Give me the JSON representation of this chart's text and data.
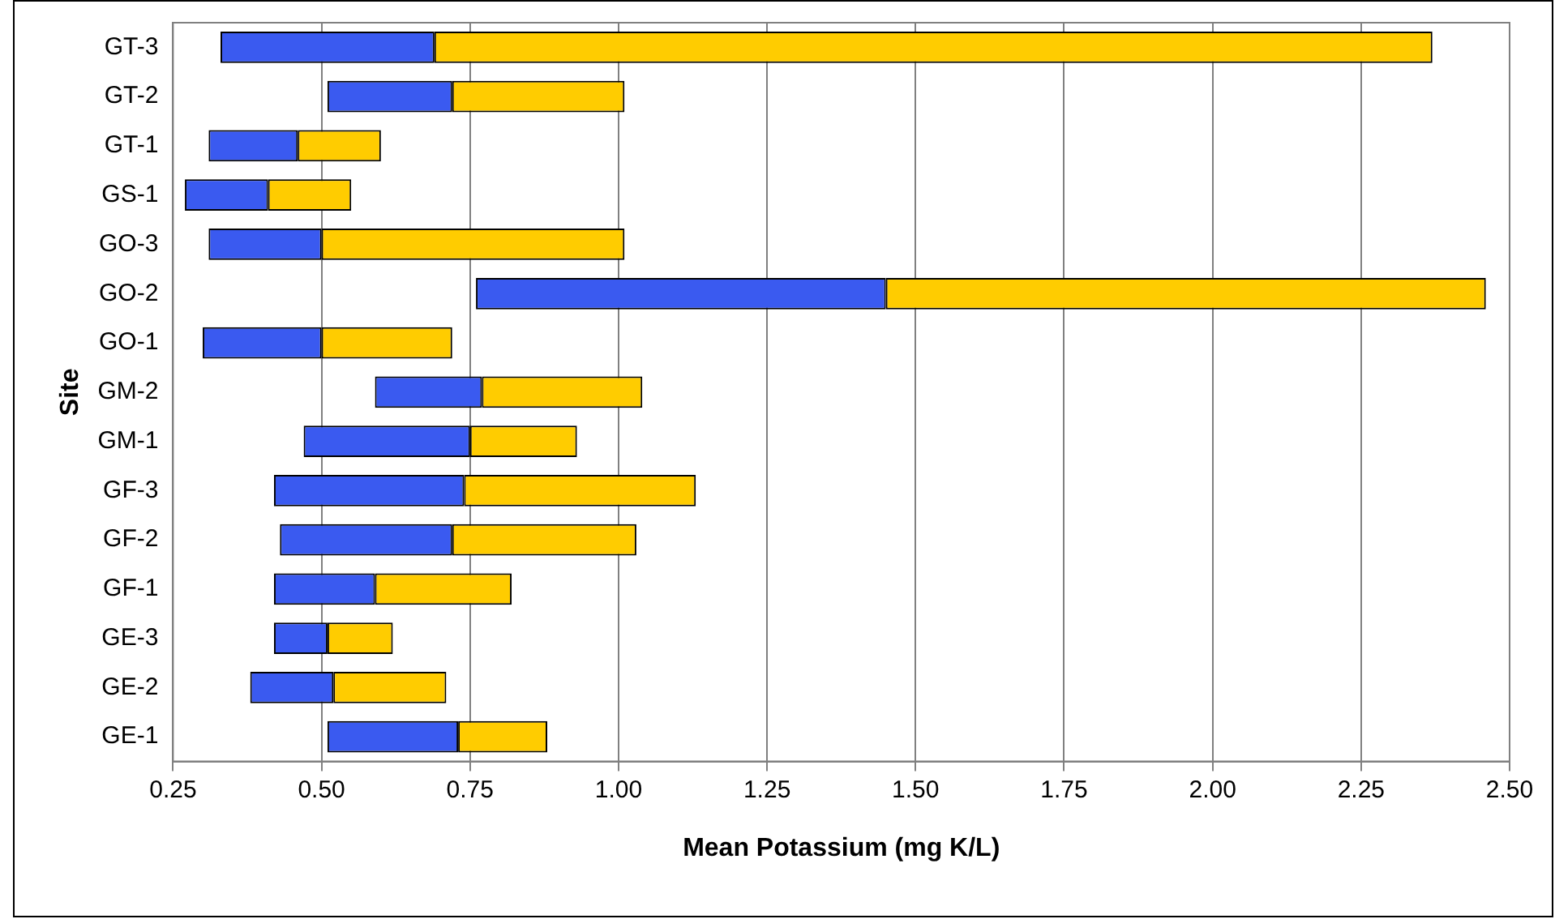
{
  "chart_data": {
    "type": "bar",
    "orientation": "horizontal",
    "xlabel": "Mean Potassium (mg K/L)",
    "ylabel": "Site",
    "categories": [
      "GT-3",
      "GT-2",
      "GT-1",
      "GS-1",
      "GO-3",
      "GO-2",
      "GO-1",
      "GM-2",
      "GM-1",
      "GF-3",
      "GF-2",
      "GF-1",
      "GE-3",
      "GE-2",
      "GE-1"
    ],
    "series": [
      {
        "color": "#3a5af0",
        "base": [
          0.33,
          0.51,
          0.31,
          0.27,
          0.31,
          0.76,
          0.3,
          0.59,
          0.47,
          0.42,
          0.43,
          0.42,
          0.42,
          0.38,
          0.51
        ],
        "values": [
          0.36,
          0.21,
          0.15,
          0.14,
          0.19,
          0.69,
          0.2,
          0.18,
          0.28,
          0.32,
          0.29,
          0.17,
          0.09,
          0.14,
          0.22
        ]
      },
      {
        "color": "#ffcc00",
        "base": [
          0.69,
          0.72,
          0.46,
          0.41,
          0.5,
          1.45,
          0.5,
          0.77,
          0.75,
          0.74,
          0.72,
          0.59,
          0.51,
          0.52,
          0.73
        ],
        "values": [
          1.68,
          0.29,
          0.14,
          0.14,
          0.51,
          1.01,
          0.22,
          0.27,
          0.18,
          0.39,
          0.31,
          0.23,
          0.11,
          0.19,
          0.15
        ]
      }
    ],
    "xlim": [
      0.25,
      2.5
    ],
    "xticks": [
      {
        "value": 0.25,
        "label": "0.25"
      },
      {
        "value": 0.5,
        "label": "0.50"
      },
      {
        "value": 0.75,
        "label": "0.75"
      },
      {
        "value": 1,
        "label": "1.00"
      },
      {
        "value": 1.25,
        "label": "1.25"
      },
      {
        "value": 1.5,
        "label": "1.50"
      },
      {
        "value": 1.75,
        "label": "1.75"
      },
      {
        "value": 2,
        "label": "2.00"
      },
      {
        "value": 2.25,
        "label": "2.25"
      },
      {
        "value": 2.5,
        "label": "2.50"
      }
    ],
    "grid": "x",
    "legend": false
  }
}
